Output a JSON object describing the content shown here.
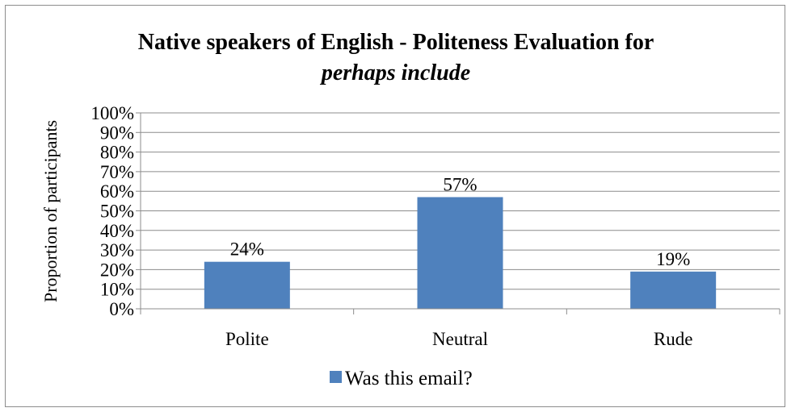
{
  "chart_data": {
    "type": "bar",
    "title": "Native speakers of English - Politeness Evaluation for",
    "subtitle": "perhaps include",
    "xlabel": "",
    "ylabel": "Proportion of participants",
    "categories": [
      "Polite",
      "Neutral",
      "Rude"
    ],
    "series": [
      {
        "name": "Was this email?",
        "values": [
          24,
          57,
          19
        ],
        "data_labels": [
          "24%",
          "57%",
          "19%"
        ],
        "color": "#4f81bd"
      }
    ],
    "ylim": [
      0,
      100
    ],
    "yticks": [
      0,
      10,
      20,
      30,
      40,
      50,
      60,
      70,
      80,
      90,
      100
    ],
    "ytick_labels": [
      "0%",
      "10%",
      "20%",
      "30%",
      "40%",
      "50%",
      "60%",
      "70%",
      "80%",
      "90%",
      "100%"
    ],
    "grid": true,
    "legend_position": "bottom"
  }
}
